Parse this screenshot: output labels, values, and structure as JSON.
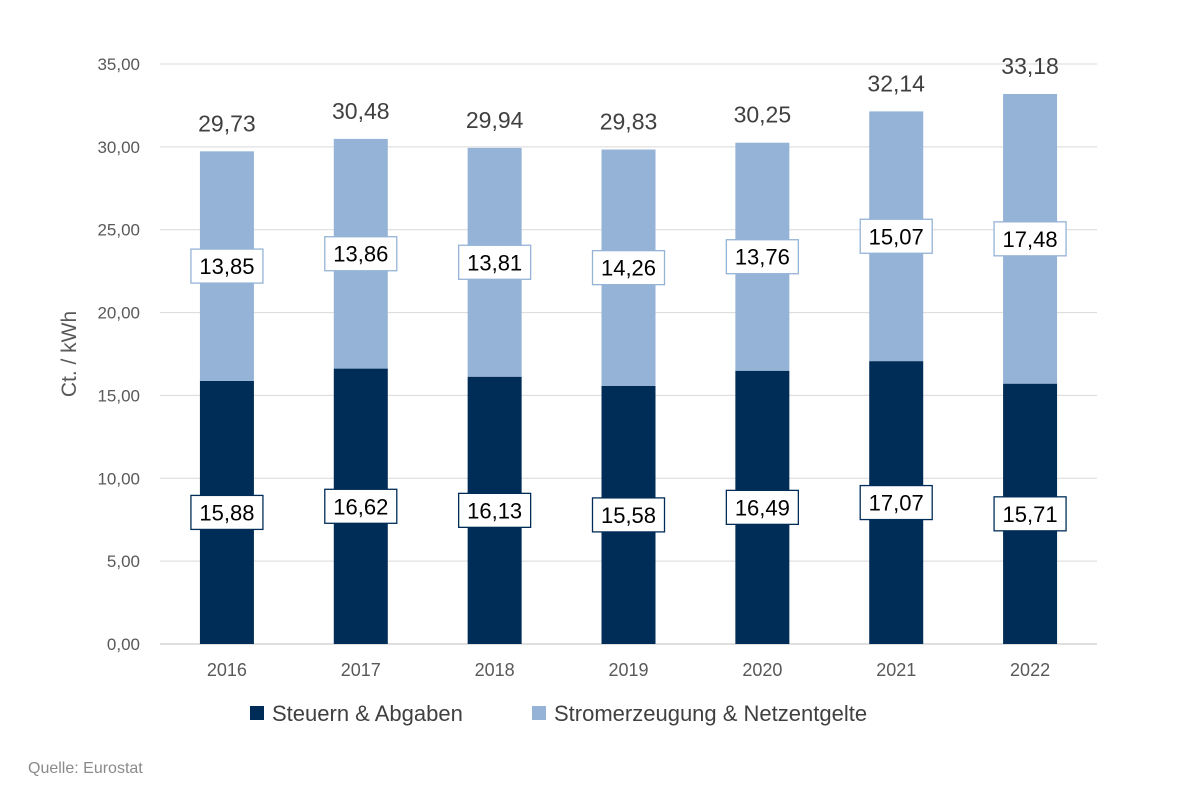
{
  "chart_data": {
    "type": "bar",
    "stacked": true,
    "categories": [
      "2016",
      "2017",
      "2018",
      "2019",
      "2020",
      "2021",
      "2022"
    ],
    "series": [
      {
        "name": "Steuern & Abgaben",
        "color": "#002d57",
        "values": [
          15.88,
          16.62,
          16.13,
          15.58,
          16.49,
          17.07,
          15.71
        ],
        "labels": [
          "15,88",
          "16,62",
          "16,13",
          "15,58",
          "16,49",
          "17,07",
          "15,71"
        ]
      },
      {
        "name": "Stromerzeugung & Netzentgelte",
        "color": "#95b3d7",
        "values": [
          13.85,
          13.86,
          13.81,
          14.26,
          13.76,
          15.07,
          17.48
        ],
        "labels": [
          "13,85",
          "13,86",
          "13,81",
          "14,26",
          "13,76",
          "15,07",
          "17,48"
        ]
      }
    ],
    "totals": [
      29.73,
      30.48,
      29.94,
      29.83,
      30.25,
      32.14,
      33.18
    ],
    "total_labels": [
      "29,73",
      "30,48",
      "29,94",
      "29,83",
      "30,25",
      "32,14",
      "33,18"
    ],
    "ylabel": "Ct. / kWh",
    "ylim": [
      0,
      35
    ],
    "yticks": [
      0,
      5,
      10,
      15,
      20,
      25,
      30,
      35
    ],
    "ytick_labels": [
      "0,00",
      "5,00",
      "10,00",
      "15,00",
      "20,00",
      "25,00",
      "30,00",
      "35,00"
    ],
    "grid": true,
    "legend_position": "bottom"
  },
  "source_note": "Quelle: Eurostat",
  "colors": {
    "grid": "#d9d9d9",
    "axis": "#bfbfbf",
    "text": "#595959",
    "label_text": "#000000"
  }
}
